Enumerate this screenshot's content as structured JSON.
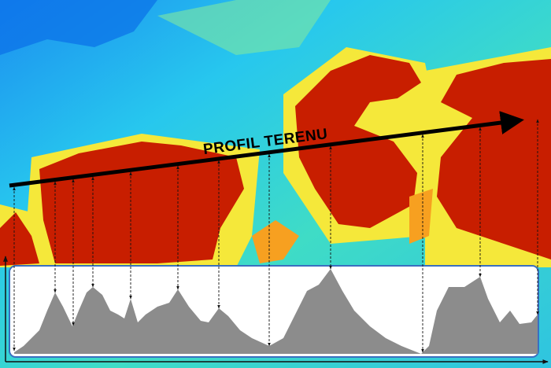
{
  "map": {
    "label": "PROFIL TERENU"
  }
}
